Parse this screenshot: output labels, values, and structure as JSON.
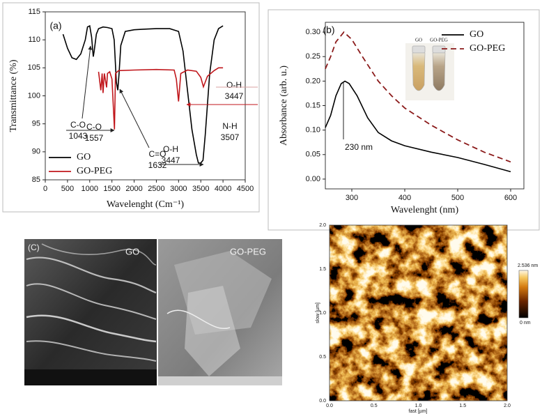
{
  "chart_data": [
    {
      "type": "line",
      "panel_label": "(a)",
      "xlabel": "Wavelenght (Cm⁻¹)",
      "ylabel": "Transmittance (%)",
      "xlim": [
        0,
        4500
      ],
      "xticks": [
        0,
        500,
        1000,
        1500,
        2000,
        2500,
        3000,
        3500,
        4000,
        4500
      ],
      "ylim": [
        85,
        115
      ],
      "yticks": [
        85,
        90,
        95,
        100,
        105,
        110,
        115
      ],
      "legend": "lower left",
      "series": [
        {
          "name": "GO",
          "color": "#000000",
          "dash": false,
          "x": [
            400,
            500,
            600,
            700,
            800,
            900,
            950,
            1000,
            1043,
            1080,
            1100,
            1150,
            1200,
            1300,
            1400,
            1500,
            1550,
            1600,
            1632,
            1660,
            1700,
            1800,
            2000,
            2200,
            2500,
            2800,
            3000,
            3100,
            3200,
            3300,
            3400,
            3447,
            3500,
            3550,
            3600,
            3700,
            3800,
            3900,
            4000
          ],
          "values": [
            111,
            108.5,
            106.8,
            106.5,
            107.5,
            110,
            112.3,
            112.5,
            110.5,
            107,
            108,
            111,
            112,
            112.3,
            112.2,
            112,
            110,
            102.5,
            101,
            104,
            109,
            111.5,
            111.8,
            111.9,
            112,
            112,
            111.5,
            108,
            101,
            94,
            89.5,
            88,
            88,
            88.5,
            93,
            104,
            110,
            112,
            112.5
          ]
        },
        {
          "name": "GO-PEG",
          "color": "#c0161b",
          "dash": false,
          "x": [
            1200,
            1250,
            1280,
            1300,
            1330,
            1380,
            1400,
            1450,
            1500,
            1557,
            1580,
            1650,
            2000,
            2500,
            2900,
            2950,
            3000,
            3050,
            3200,
            3400,
            3500,
            3560,
            3650,
            3800,
            3900,
            4000
          ],
          "values": [
            104.3,
            101,
            104,
            100.5,
            104,
            101.5,
            104,
            104.3,
            103,
            94,
            104,
            104.5,
            104.6,
            104.7,
            104.6,
            103,
            99,
            104,
            104.6,
            104.4,
            103.3,
            101.6,
            103.5,
            104.5,
            105,
            105
          ]
        }
      ],
      "annotations": [
        {
          "lines": [
            "C-O",
            "1043"
          ]
        },
        {
          "lines": [
            "C=O",
            "1632"
          ]
        },
        {
          "lines": [
            "C-O",
            "1557"
          ]
        },
        {
          "lines": [
            "O-H",
            "3447"
          ]
        },
        {
          "lines": [
            "N-H",
            "3507"
          ]
        },
        {
          "lines": [
            "O-H",
            "3447"
          ]
        }
      ]
    },
    {
      "type": "line",
      "panel_label": "(b)",
      "xlabel": "Wavelenght (nm)",
      "ylabel": "Absorbance (arb. u.)",
      "xlim": [
        250,
        625
      ],
      "xticks": [
        300,
        400,
        500,
        600
      ],
      "ylim": [
        -0.02,
        0.32
      ],
      "yticks": [
        {
          "value": 0,
          "label": "0.00"
        },
        0.05,
        {
          "value": 0.1,
          "label": "0.10"
        },
        0.15,
        {
          "value": 0.2,
          "label": "0.20"
        },
        0.25,
        {
          "value": 0.3,
          "label": "0.30"
        }
      ],
      "legend": "upper right",
      "series": [
        {
          "name": "GO",
          "color": "#000000",
          "dash": false,
          "x": [
            250,
            260,
            270,
            280,
            287,
            295,
            310,
            330,
            350,
            375,
            400,
            450,
            500,
            550,
            600
          ],
          "values": [
            0.105,
            0.13,
            0.17,
            0.195,
            0.2,
            0.195,
            0.17,
            0.125,
            0.095,
            0.078,
            0.068,
            0.055,
            0.044,
            0.03,
            0.015
          ]
        },
        {
          "name": "GO-PEG",
          "color": "#8b1a1a",
          "dash": true,
          "x": [
            250,
            260,
            270,
            285,
            300,
            320,
            350,
            375,
            400,
            450,
            500,
            550,
            600
          ],
          "values": [
            0.225,
            0.25,
            0.28,
            0.3,
            0.285,
            0.25,
            0.2,
            0.17,
            0.145,
            0.11,
            0.08,
            0.055,
            0.035
          ]
        }
      ],
      "annotations": [
        {
          "lines": [
            "230 nm"
          ]
        }
      ],
      "inset_labels": [
        "GO",
        "GO-PEG"
      ]
    }
  ],
  "sem": {
    "panel_label": "(C)",
    "left_label": "GO",
    "right_label": "GO-PEG"
  },
  "afm": {
    "x_ticks": [
      "0.0",
      "0.5",
      "1.0",
      "1.5",
      "2.0"
    ],
    "y_ticks": [
      "0.0",
      "0.5",
      "1.0",
      "1.5",
      "2.0"
    ],
    "x_label": "fast [µm]",
    "y_label": "slow [µm]",
    "scale_max": "2.536 nm",
    "scale_min": "0 nm"
  }
}
